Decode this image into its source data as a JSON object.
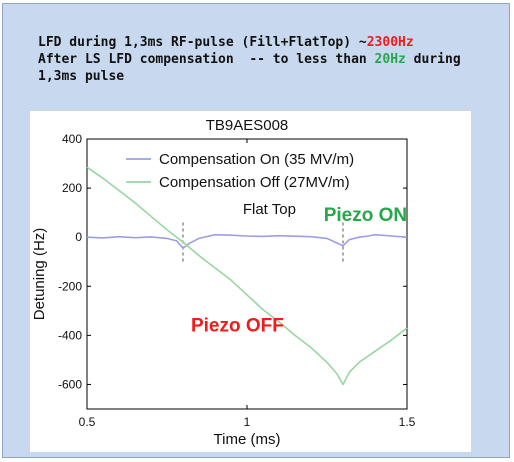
{
  "header": {
    "line1_prefix": "LFD during 1,3ms RF-pulse (Fill+FlatTop) ~",
    "line1_value": "2300Hz",
    "line2_prefix": "After LS LFD compensation  -- to less than ",
    "line2_value": "20Hz",
    "line2_suffix": " during",
    "line3": "1,3ms pulse"
  },
  "colors": {
    "value_red": "#ee1c1c",
    "value_green": "#25a84b",
    "series_on": "#9b9ee8",
    "series_off": "#97d6a0"
  },
  "chart_data": {
    "type": "line",
    "title": "TB9AES008",
    "xlabel": "Time (ms)",
    "ylabel": "Detuning (Hz)",
    "xlim": [
      0.5,
      1.5
    ],
    "ylim": [
      -700,
      400
    ],
    "xticks": [
      0.5,
      1,
      1.5
    ],
    "xtick_labels": [
      "0.5",
      "1",
      "1.5"
    ],
    "yticks": [
      400,
      200,
      0,
      -200,
      -400,
      -600
    ],
    "ytick_labels": [
      "400",
      "200",
      "0",
      "-200",
      "-400",
      "-600"
    ],
    "legend_position": "top",
    "grid": false,
    "series": [
      {
        "name": "Compensation On (35 MV/m)",
        "color": "#9b9ee8",
        "x": [
          0.5,
          0.55,
          0.6,
          0.65,
          0.7,
          0.75,
          0.78,
          0.8,
          0.82,
          0.85,
          0.9,
          0.95,
          1.0,
          1.05,
          1.1,
          1.15,
          1.2,
          1.25,
          1.3,
          1.32,
          1.35,
          1.38,
          1.4,
          1.45,
          1.5
        ],
        "y": [
          0,
          -3,
          2,
          -2,
          1,
          -5,
          -15,
          -45,
          -25,
          -5,
          10,
          8,
          5,
          3,
          6,
          4,
          2,
          -5,
          -35,
          -10,
          0,
          5,
          10,
          5,
          0
        ]
      },
      {
        "name": "Compensation Off (27MV/m)",
        "color": "#97d6a0",
        "x": [
          0.5,
          0.55,
          0.6,
          0.65,
          0.7,
          0.75,
          0.8,
          0.85,
          0.9,
          0.95,
          1.0,
          1.05,
          1.1,
          1.15,
          1.2,
          1.25,
          1.28,
          1.3,
          1.32,
          1.35,
          1.4,
          1.45,
          1.5
        ],
        "y": [
          285,
          240,
          190,
          140,
          85,
          30,
          -20,
          -75,
          -125,
          -175,
          -235,
          -295,
          -345,
          -400,
          -450,
          -510,
          -555,
          -600,
          -550,
          -510,
          -465,
          -420,
          -370
        ]
      }
    ],
    "markers": [
      {
        "x": 0.8,
        "label": ""
      },
      {
        "x": 1.3,
        "label": ""
      }
    ],
    "annotations": [
      {
        "text": "Flat Top",
        "x": 1.07,
        "y": 95,
        "color": "#111111"
      },
      {
        "text": "Piezo ON",
        "x": 1.37,
        "y": 65,
        "color": "#25a84b"
      },
      {
        "text": "Piezo OFF",
        "x": 0.97,
        "y": -385,
        "color": "#ee1c1c"
      }
    ]
  }
}
